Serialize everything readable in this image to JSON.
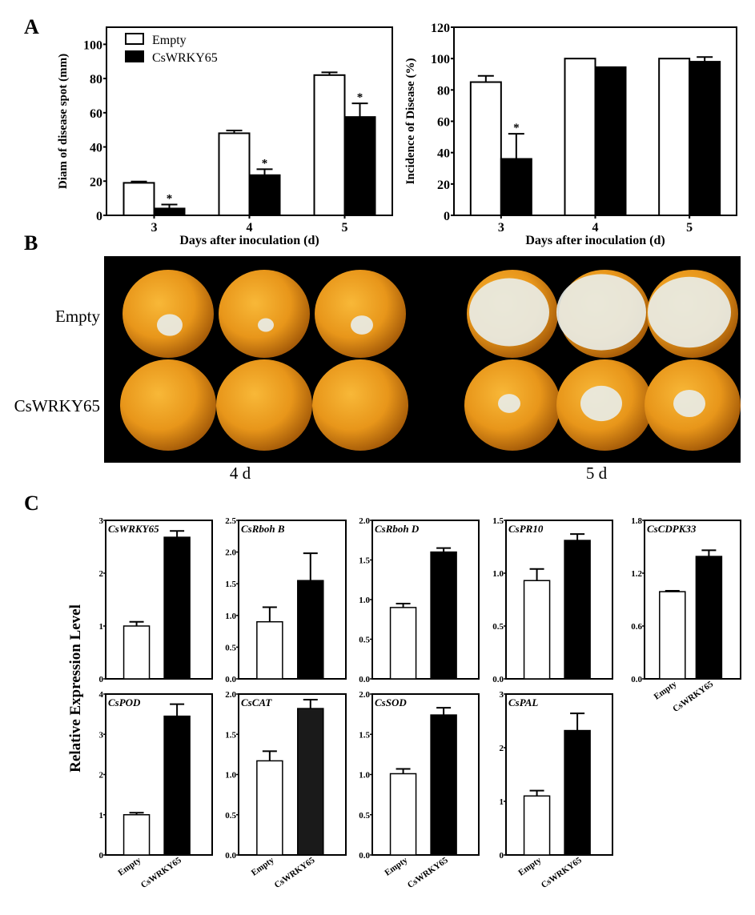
{
  "panel_labels": {
    "a": "A",
    "b": "B",
    "c": "C"
  },
  "colors": {
    "empty": "#ffffff",
    "cswrky65": "#000000",
    "cswrky65_cat": "#1a1a1a",
    "photo_background": "#000000",
    "orange": "#f0a020",
    "lesion": "#e8ece6"
  },
  "chart_data": [
    {
      "id": "diam",
      "type": "bar",
      "title": "",
      "xlabel": "Days after inoculation (d)",
      "ylabel": "Diam of disease spot  (mm)",
      "categories": [
        "3",
        "4",
        "5"
      ],
      "ylim": [
        0,
        110
      ],
      "yticks": [
        "0",
        "20",
        "40",
        "60",
        "80",
        "100"
      ],
      "legend": {
        "placement": "top-left",
        "entries": [
          "Empty",
          "CsWRKY65"
        ]
      },
      "series": [
        {
          "name": "Empty",
          "values": [
            19,
            48,
            82
          ],
          "errors": [
            0.8,
            1.6,
            1.6
          ],
          "significance": [
            "",
            "",
            ""
          ]
        },
        {
          "name": "CsWRKY65",
          "values": [
            4,
            23.5,
            57.5
          ],
          "errors": [
            2.3,
            3.5,
            8
          ],
          "significance": [
            "*",
            "*",
            "*"
          ]
        }
      ]
    },
    {
      "id": "incidence",
      "type": "bar",
      "title": "",
      "xlabel": "Days after inoculation (d)",
      "ylabel": "Incidence of  Disease  (%)",
      "categories": [
        "3",
        "4",
        "5"
      ],
      "ylim": [
        0,
        120
      ],
      "yticks": [
        "0",
        "20",
        "40",
        "60",
        "80",
        "100",
        "120"
      ],
      "series": [
        {
          "name": "Empty",
          "values": [
            85,
            100,
            100
          ],
          "errors": [
            4,
            0,
            0
          ],
          "significance": [
            "",
            "",
            ""
          ]
        },
        {
          "name": "CsWRKY65",
          "values": [
            36,
            94.5,
            98
          ],
          "errors": [
            16,
            0,
            3
          ],
          "significance": [
            "*",
            "",
            ""
          ]
        }
      ]
    },
    {
      "id": "g1",
      "type": "bar",
      "title": "CsWRKY65",
      "categories": [
        "Empty",
        "CsWRKY65"
      ],
      "values": [
        1.0,
        2.68
      ],
      "errors": [
        0.08,
        0.12
      ],
      "ylim": [
        0,
        3
      ],
      "yticks": [
        "0",
        "1",
        "2",
        "3"
      ]
    },
    {
      "id": "g2",
      "type": "bar",
      "title": "CsRboh B",
      "categories": [
        "Empty",
        "CsWRKY65"
      ],
      "values": [
        0.9,
        1.55
      ],
      "errors": [
        0.23,
        0.43
      ],
      "ylim": [
        0,
        2.5
      ],
      "yticks": [
        "0.0",
        "0.5",
        "1.0",
        "1.5",
        "2.0",
        "2.5"
      ]
    },
    {
      "id": "g3",
      "type": "bar",
      "title": "CsRboh D",
      "categories": [
        "Empty",
        "CsWRKY65"
      ],
      "values": [
        0.9,
        1.6
      ],
      "errors": [
        0.05,
        0.05
      ],
      "ylim": [
        0,
        2.0
      ],
      "yticks": [
        "0.0",
        "0.5",
        "1.0",
        "1.5",
        "2.0"
      ]
    },
    {
      "id": "g4",
      "type": "bar",
      "title": "CsPR10",
      "categories": [
        "Empty",
        "CsWRKY65"
      ],
      "values": [
        0.93,
        1.31
      ],
      "errors": [
        0.11,
        0.06
      ],
      "ylim": [
        0,
        1.5
      ],
      "yticks": [
        "0.0",
        "0.5",
        "1.0",
        "1.5"
      ]
    },
    {
      "id": "g5",
      "type": "bar",
      "title": "CsCDPK33",
      "categories": [
        "Empty",
        "CsWRKY65"
      ],
      "values": [
        0.99,
        1.39
      ],
      "errors": [
        0.01,
        0.07
      ],
      "ylim": [
        0,
        1.8
      ],
      "yticks": [
        "0.0",
        "0.6",
        "1.2",
        "1.8"
      ]
    },
    {
      "id": "g6",
      "type": "bar",
      "title": "CsPOD",
      "categories": [
        "Empty",
        "CsWRKY65"
      ],
      "values": [
        1.0,
        3.45
      ],
      "errors": [
        0.05,
        0.3
      ],
      "ylim": [
        0,
        4
      ],
      "yticks": [
        "0",
        "1",
        "2",
        "3",
        "4"
      ]
    },
    {
      "id": "g7",
      "type": "bar",
      "title": "CsCAT",
      "categories": [
        "Empty",
        "CsWRKY65"
      ],
      "values": [
        1.17,
        1.82
      ],
      "errors": [
        0.12,
        0.11
      ],
      "ylim": [
        0,
        2.0
      ],
      "yticks": [
        "0.0",
        "0.5",
        "1.0",
        "1.5",
        "2.0"
      ]
    },
    {
      "id": "g8",
      "type": "bar",
      "title": "CsSOD",
      "categories": [
        "Empty",
        "CsWRKY65"
      ],
      "values": [
        1.01,
        1.74
      ],
      "errors": [
        0.06,
        0.09
      ],
      "ylim": [
        0,
        2.0
      ],
      "yticks": [
        "0.0",
        "0.5",
        "1.0",
        "1.5",
        "2.0"
      ]
    },
    {
      "id": "g9",
      "type": "bar",
      "title": "CsPAL",
      "categories": [
        "Empty",
        "CsWRKY65"
      ],
      "values": [
        1.1,
        2.32
      ],
      "errors": [
        0.1,
        0.32
      ],
      "ylim": [
        0,
        3
      ],
      "yticks": [
        "0",
        "1",
        "2",
        "3"
      ]
    }
  ],
  "panel_c_ylabel": "Relative Expression Level",
  "photo": {
    "row_labels": [
      "Empty",
      "CsWRKY65"
    ],
    "column_labels": [
      "4 d",
      "5 d"
    ]
  }
}
